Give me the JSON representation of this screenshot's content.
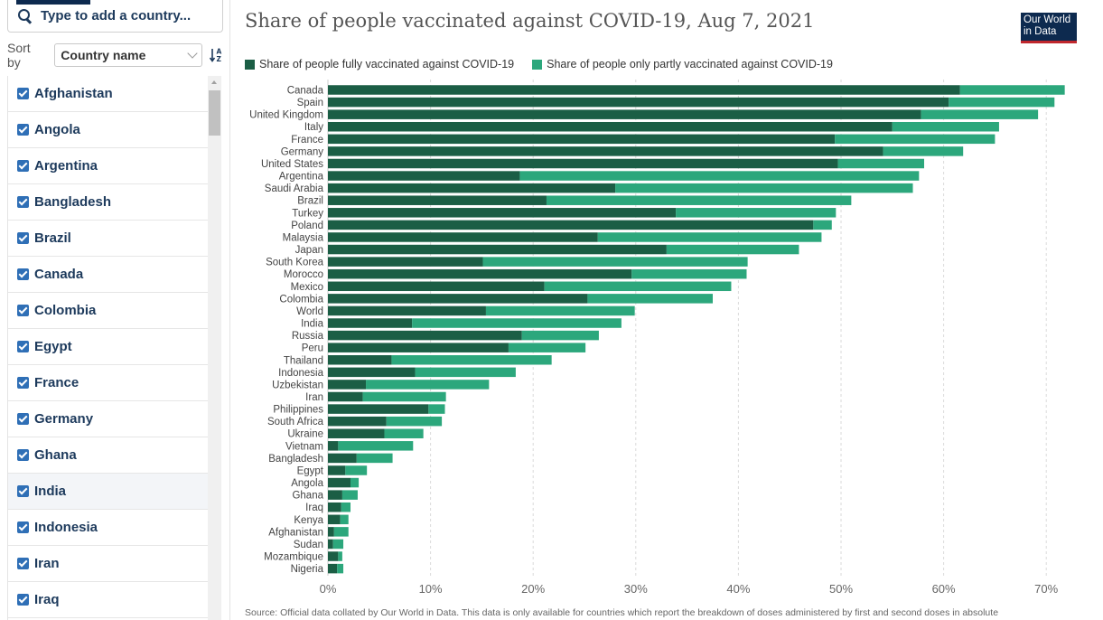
{
  "sidebar": {
    "search_placeholder": "Type to add a country...",
    "sort_label": "Sort by",
    "sort_value": "Country name",
    "countries": [
      "Afghanistan",
      "Angola",
      "Argentina",
      "Bangladesh",
      "Brazil",
      "Canada",
      "Colombia",
      "Egypt",
      "France",
      "Germany",
      "Ghana",
      "India",
      "Indonesia",
      "Iran",
      "Iraq"
    ],
    "highlighted": "India"
  },
  "logo": {
    "line1": "Our World",
    "line2": "in Data"
  },
  "source_text": "Source: Official data collated by Our World in Data. This data is only available for countries which report the breakdown of doses administered by first and second doses in absolute",
  "colors": {
    "fully": "#1b5e45",
    "partly": "#2ca77c"
  },
  "chart_data": {
    "type": "bar",
    "orientation": "horizontal",
    "stacked": true,
    "title": "Share of people vaccinated against COVID-19, Aug 7, 2021",
    "xlim": [
      0,
      72
    ],
    "xticks": [
      0,
      10,
      20,
      30,
      40,
      50,
      60,
      70
    ],
    "xtick_labels": [
      "0%",
      "10%",
      "20%",
      "30%",
      "40%",
      "50%",
      "60%",
      "70%"
    ],
    "grid": true,
    "legend_position": "top",
    "categories": [
      "Canada",
      "Spain",
      "United Kingdom",
      "Italy",
      "France",
      "Germany",
      "United States",
      "Argentina",
      "Saudi Arabia",
      "Brazil",
      "Turkey",
      "Poland",
      "Malaysia",
      "Japan",
      "South Korea",
      "Morocco",
      "Mexico",
      "Colombia",
      "World",
      "India",
      "Russia",
      "Peru",
      "Thailand",
      "Indonesia",
      "Uzbekistan",
      "Iran",
      "Philippines",
      "South Africa",
      "Ukraine",
      "Vietnam",
      "Bangladesh",
      "Egypt",
      "Angola",
      "Ghana",
      "Iraq",
      "Kenya",
      "Afghanistan",
      "Sudan",
      "Mozambique",
      "Nigeria"
    ],
    "series": [
      {
        "name": "Share of people fully vaccinated against COVID-19",
        "values": [
          61.6,
          60.5,
          57.8,
          55.0,
          49.4,
          54.1,
          49.7,
          18.7,
          28.0,
          21.3,
          33.9,
          47.3,
          26.3,
          33.0,
          15.1,
          29.6,
          21.1,
          25.3,
          15.4,
          8.2,
          18.9,
          17.6,
          6.2,
          8.5,
          3.7,
          3.4,
          9.8,
          5.7,
          5.5,
          1.0,
          2.8,
          1.7,
          2.2,
          1.4,
          1.3,
          1.2,
          0.6,
          0.5,
          1.0,
          0.9
        ]
      },
      {
        "name": "Share of people only partly vaccinated against COVID-19",
        "values": [
          10.2,
          10.3,
          11.4,
          10.4,
          15.6,
          7.8,
          8.4,
          38.9,
          29.0,
          29.7,
          15.6,
          1.8,
          21.8,
          12.9,
          25.8,
          11.2,
          18.2,
          12.2,
          14.5,
          20.4,
          7.5,
          7.5,
          15.6,
          9.8,
          12.0,
          8.1,
          1.6,
          5.4,
          3.8,
          7.3,
          3.5,
          2.1,
          0.8,
          1.5,
          0.9,
          0.8,
          1.4,
          1.0,
          0.4,
          0.6
        ]
      }
    ]
  }
}
